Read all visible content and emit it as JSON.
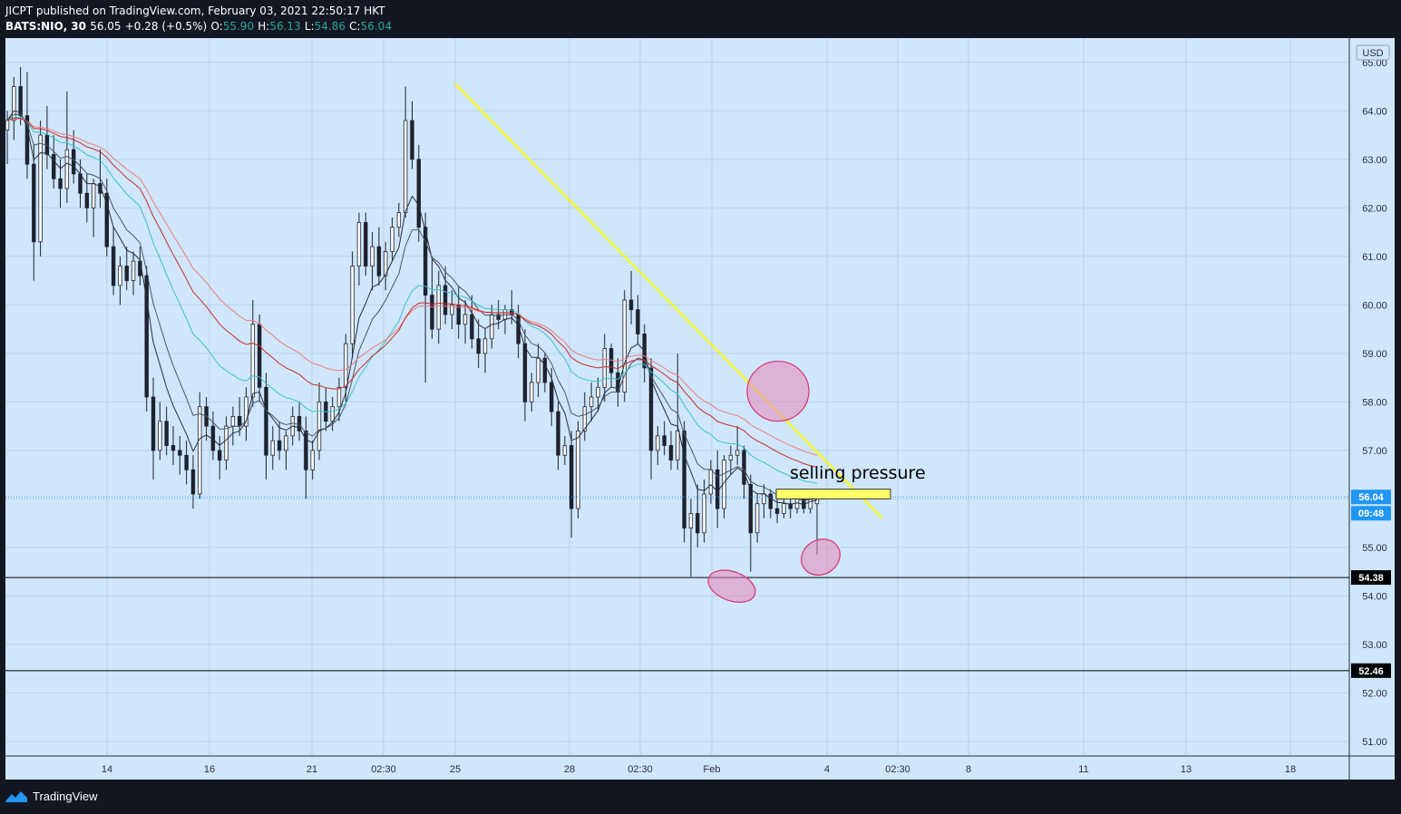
{
  "header": {
    "publisher_line": "JICPT published on TradingView.com, February 03, 2021 22:50:17 HKT",
    "symbol": "BATS:NIO, 30",
    "last": "56.05",
    "change": "+0.28 (+0.5%)",
    "o_label": "O:",
    "o_val": "55.90",
    "h_label": "H:",
    "h_val": "56.13",
    "l_label": "L:",
    "l_val": "54.86",
    "c_label": "C:",
    "c_val": "56.04"
  },
  "footer": {
    "brand": "TradingView"
  },
  "chart_data": {
    "type": "candlestick",
    "currency_label": "USD",
    "ylim": [
      50.7,
      65.5
    ],
    "y_ticks": [
      "65.00",
      "64.00",
      "63.00",
      "62.00",
      "61.00",
      "60.00",
      "59.00",
      "58.00",
      "57.00",
      "56.00",
      "55.00",
      "54.00",
      "53.00",
      "52.00",
      "51.00"
    ],
    "x_ticks": [
      "14",
      "16",
      "21",
      "02:30",
      "25",
      "28",
      "02:30",
      "Feb",
      "4",
      "02:30",
      "8",
      "11",
      "13",
      "18"
    ],
    "last_price": {
      "value": "56.04",
      "countdown": "09:48",
      "color": "#2196f3"
    },
    "horizontal_lines": [
      {
        "value": 54.38,
        "label": "54.38"
      },
      {
        "value": 52.46,
        "label": "52.46"
      }
    ],
    "trendline": {
      "from": [
        25,
        64.55
      ],
      "to": [
        4.55,
        55.6
      ],
      "color": "#ffff00"
    },
    "annotation": {
      "text": "selling pressure"
    },
    "highlight_box": {
      "y_top": 56.2,
      "y_bottom": 56.0,
      "color": "#ffff66"
    },
    "circles": [
      {
        "label": "ma-cross-zone",
        "color": "#e887b8"
      },
      {
        "label": "low-wick-1",
        "color": "#e887b8"
      },
      {
        "label": "low-wick-2",
        "color": "#e887b8"
      }
    ],
    "candles": [
      {
        "o": 63.6,
        "h": 64.0,
        "l": 62.9,
        "c": 63.8
      },
      {
        "o": 63.8,
        "h": 64.7,
        "l": 63.4,
        "c": 64.5
      },
      {
        "o": 64.5,
        "h": 64.9,
        "l": 63.7,
        "c": 63.9
      },
      {
        "o": 63.9,
        "h": 64.8,
        "l": 62.6,
        "c": 62.9
      },
      {
        "o": 62.9,
        "h": 63.3,
        "l": 60.5,
        "c": 61.3
      },
      {
        "o": 61.3,
        "h": 63.8,
        "l": 61.0,
        "c": 63.5
      },
      {
        "o": 63.5,
        "h": 64.1,
        "l": 62.8,
        "c": 63.1
      },
      {
        "o": 63.1,
        "h": 63.5,
        "l": 62.4,
        "c": 62.6
      },
      {
        "o": 62.6,
        "h": 63.0,
        "l": 62.0,
        "c": 62.4
      },
      {
        "o": 62.4,
        "h": 64.4,
        "l": 62.1,
        "c": 63.2
      },
      {
        "o": 63.2,
        "h": 63.6,
        "l": 62.5,
        "c": 62.7
      },
      {
        "o": 62.7,
        "h": 63.0,
        "l": 62.0,
        "c": 62.3
      },
      {
        "o": 62.3,
        "h": 62.7,
        "l": 61.7,
        "c": 62.0
      },
      {
        "o": 62.0,
        "h": 62.6,
        "l": 61.4,
        "c": 62.5
      },
      {
        "o": 62.5,
        "h": 63.2,
        "l": 62.0,
        "c": 62.3
      },
      {
        "o": 62.3,
        "h": 62.6,
        "l": 61.0,
        "c": 61.2
      },
      {
        "o": 61.2,
        "h": 61.6,
        "l": 60.2,
        "c": 60.4
      },
      {
        "o": 60.4,
        "h": 61.0,
        "l": 60.0,
        "c": 60.8
      },
      {
        "o": 60.8,
        "h": 61.2,
        "l": 60.3,
        "c": 60.5
      },
      {
        "o": 60.5,
        "h": 61.1,
        "l": 60.2,
        "c": 60.9
      },
      {
        "o": 60.9,
        "h": 61.2,
        "l": 60.4,
        "c": 60.6
      },
      {
        "o": 60.6,
        "h": 60.8,
        "l": 57.8,
        "c": 58.1
      },
      {
        "o": 58.1,
        "h": 58.5,
        "l": 56.4,
        "c": 57.0
      },
      {
        "o": 57.0,
        "h": 58.0,
        "l": 56.8,
        "c": 57.6
      },
      {
        "o": 57.6,
        "h": 57.9,
        "l": 56.9,
        "c": 57.1
      },
      {
        "o": 57.1,
        "h": 57.5,
        "l": 56.7,
        "c": 57.0
      },
      {
        "o": 57.0,
        "h": 57.3,
        "l": 56.5,
        "c": 56.9
      },
      {
        "o": 56.9,
        "h": 57.2,
        "l": 56.3,
        "c": 56.6
      },
      {
        "o": 56.6,
        "h": 56.9,
        "l": 55.8,
        "c": 56.1
      },
      {
        "o": 56.1,
        "h": 58.2,
        "l": 56.0,
        "c": 57.9
      },
      {
        "o": 57.9,
        "h": 58.1,
        "l": 57.2,
        "c": 57.5
      },
      {
        "o": 57.5,
        "h": 57.8,
        "l": 56.8,
        "c": 57.0
      },
      {
        "o": 57.0,
        "h": 57.3,
        "l": 56.4,
        "c": 56.8
      },
      {
        "o": 56.8,
        "h": 57.7,
        "l": 56.6,
        "c": 57.5
      },
      {
        "o": 57.5,
        "h": 57.9,
        "l": 57.1,
        "c": 57.7
      },
      {
        "o": 57.7,
        "h": 58.1,
        "l": 57.3,
        "c": 57.5
      },
      {
        "o": 57.5,
        "h": 58.3,
        "l": 57.2,
        "c": 58.1
      },
      {
        "o": 58.1,
        "h": 60.1,
        "l": 57.9,
        "c": 59.6
      },
      {
        "o": 59.6,
        "h": 59.8,
        "l": 58.0,
        "c": 58.3
      },
      {
        "o": 58.3,
        "h": 58.6,
        "l": 56.4,
        "c": 56.9
      },
      {
        "o": 56.9,
        "h": 57.5,
        "l": 56.6,
        "c": 57.2
      },
      {
        "o": 57.2,
        "h": 57.6,
        "l": 56.8,
        "c": 57.0
      },
      {
        "o": 57.0,
        "h": 57.4,
        "l": 56.6,
        "c": 57.3
      },
      {
        "o": 57.3,
        "h": 57.9,
        "l": 57.1,
        "c": 57.7
      },
      {
        "o": 57.7,
        "h": 58.0,
        "l": 57.2,
        "c": 57.4
      },
      {
        "o": 57.4,
        "h": 57.7,
        "l": 56.0,
        "c": 56.6
      },
      {
        "o": 56.6,
        "h": 57.2,
        "l": 56.4,
        "c": 57.0
      },
      {
        "o": 57.0,
        "h": 58.4,
        "l": 56.8,
        "c": 58.0
      },
      {
        "o": 58.0,
        "h": 58.3,
        "l": 57.4,
        "c": 57.6
      },
      {
        "o": 57.6,
        "h": 58.1,
        "l": 57.4,
        "c": 57.9
      },
      {
        "o": 57.9,
        "h": 58.5,
        "l": 57.6,
        "c": 58.3
      },
      {
        "o": 58.3,
        "h": 59.4,
        "l": 58.0,
        "c": 59.2
      },
      {
        "o": 59.2,
        "h": 61.1,
        "l": 58.9,
        "c": 60.8
      },
      {
        "o": 60.8,
        "h": 61.9,
        "l": 60.4,
        "c": 61.7
      },
      {
        "o": 61.7,
        "h": 61.9,
        "l": 60.6,
        "c": 60.8
      },
      {
        "o": 60.8,
        "h": 61.5,
        "l": 60.3,
        "c": 61.2
      },
      {
        "o": 61.2,
        "h": 61.6,
        "l": 60.4,
        "c": 60.6
      },
      {
        "o": 60.6,
        "h": 61.3,
        "l": 60.3,
        "c": 61.1
      },
      {
        "o": 61.1,
        "h": 61.8,
        "l": 60.9,
        "c": 61.6
      },
      {
        "o": 61.6,
        "h": 62.1,
        "l": 61.4,
        "c": 61.9
      },
      {
        "o": 61.9,
        "h": 64.5,
        "l": 61.8,
        "c": 63.8
      },
      {
        "o": 63.8,
        "h": 64.2,
        "l": 62.8,
        "c": 63.0
      },
      {
        "o": 63.0,
        "h": 63.3,
        "l": 61.3,
        "c": 61.6
      },
      {
        "o": 61.6,
        "h": 61.9,
        "l": 58.4,
        "c": 60.2
      },
      {
        "o": 60.2,
        "h": 61.0,
        "l": 59.3,
        "c": 59.5
      },
      {
        "o": 59.5,
        "h": 60.7,
        "l": 59.2,
        "c": 60.4
      },
      {
        "o": 60.4,
        "h": 60.8,
        "l": 59.6,
        "c": 59.8
      },
      {
        "o": 59.8,
        "h": 60.3,
        "l": 59.5,
        "c": 60.0
      },
      {
        "o": 60.0,
        "h": 60.4,
        "l": 59.3,
        "c": 59.6
      },
      {
        "o": 59.6,
        "h": 60.1,
        "l": 59.2,
        "c": 59.8
      },
      {
        "o": 59.8,
        "h": 60.2,
        "l": 59.1,
        "c": 59.3
      },
      {
        "o": 59.3,
        "h": 59.7,
        "l": 58.7,
        "c": 59.0
      },
      {
        "o": 59.0,
        "h": 59.5,
        "l": 58.6,
        "c": 59.3
      },
      {
        "o": 59.3,
        "h": 60.0,
        "l": 59.1,
        "c": 59.8
      },
      {
        "o": 59.8,
        "h": 60.1,
        "l": 59.5,
        "c": 59.7
      },
      {
        "o": 59.7,
        "h": 60.0,
        "l": 59.4,
        "c": 59.9
      },
      {
        "o": 59.9,
        "h": 60.3,
        "l": 59.6,
        "c": 59.8
      },
      {
        "o": 59.8,
        "h": 60.0,
        "l": 58.9,
        "c": 59.2
      },
      {
        "o": 59.2,
        "h": 59.5,
        "l": 57.6,
        "c": 58.0
      },
      {
        "o": 58.0,
        "h": 58.6,
        "l": 57.8,
        "c": 58.4
      },
      {
        "o": 58.4,
        "h": 59.2,
        "l": 58.1,
        "c": 58.9
      },
      {
        "o": 58.9,
        "h": 59.0,
        "l": 58.2,
        "c": 58.4
      },
      {
        "o": 58.4,
        "h": 58.7,
        "l": 57.5,
        "c": 57.8
      },
      {
        "o": 57.8,
        "h": 58.0,
        "l": 56.6,
        "c": 56.9
      },
      {
        "o": 56.9,
        "h": 57.3,
        "l": 56.7,
        "c": 57.1
      },
      {
        "o": 57.1,
        "h": 57.4,
        "l": 55.2,
        "c": 55.8
      },
      {
        "o": 55.8,
        "h": 57.6,
        "l": 55.6,
        "c": 57.4
      },
      {
        "o": 57.4,
        "h": 58.2,
        "l": 57.2,
        "c": 57.9
      },
      {
        "o": 57.9,
        "h": 58.4,
        "l": 57.6,
        "c": 58.1
      },
      {
        "o": 58.1,
        "h": 58.5,
        "l": 57.8,
        "c": 58.3
      },
      {
        "o": 58.3,
        "h": 59.4,
        "l": 58.0,
        "c": 59.1
      },
      {
        "o": 59.1,
        "h": 59.2,
        "l": 58.3,
        "c": 58.6
      },
      {
        "o": 58.6,
        "h": 58.9,
        "l": 57.9,
        "c": 58.2
      },
      {
        "o": 58.2,
        "h": 60.3,
        "l": 58.0,
        "c": 60.1
      },
      {
        "o": 60.1,
        "h": 60.7,
        "l": 59.6,
        "c": 59.9
      },
      {
        "o": 59.9,
        "h": 60.2,
        "l": 59.2,
        "c": 59.4
      },
      {
        "o": 59.4,
        "h": 59.6,
        "l": 58.4,
        "c": 58.7
      },
      {
        "o": 58.7,
        "h": 58.9,
        "l": 56.4,
        "c": 57.0
      },
      {
        "o": 57.0,
        "h": 57.5,
        "l": 56.7,
        "c": 57.3
      },
      {
        "o": 57.3,
        "h": 57.6,
        "l": 56.9,
        "c": 57.1
      },
      {
        "o": 57.1,
        "h": 57.4,
        "l": 56.6,
        "c": 56.8
      },
      {
        "o": 56.8,
        "h": 59.0,
        "l": 56.6,
        "c": 57.4
      },
      {
        "o": 57.4,
        "h": 57.6,
        "l": 55.1,
        "c": 55.4
      },
      {
        "o": 55.4,
        "h": 56.0,
        "l": 54.4,
        "c": 55.7
      },
      {
        "o": 55.7,
        "h": 56.3,
        "l": 55.0,
        "c": 55.3
      },
      {
        "o": 55.3,
        "h": 56.4,
        "l": 55.1,
        "c": 56.1
      },
      {
        "o": 56.1,
        "h": 56.8,
        "l": 55.9,
        "c": 56.6
      },
      {
        "o": 56.6,
        "h": 57.0,
        "l": 55.4,
        "c": 55.8
      },
      {
        "o": 55.8,
        "h": 56.9,
        "l": 55.6,
        "c": 56.8
      },
      {
        "o": 56.8,
        "h": 57.1,
        "l": 56.5,
        "c": 56.9
      },
      {
        "o": 56.9,
        "h": 57.5,
        "l": 56.7,
        "c": 57.0
      },
      {
        "o": 57.0,
        "h": 57.1,
        "l": 56.0,
        "c": 56.3
      },
      {
        "o": 56.3,
        "h": 56.5,
        "l": 54.5,
        "c": 55.3
      },
      {
        "o": 55.3,
        "h": 56.1,
        "l": 55.1,
        "c": 55.9
      },
      {
        "o": 55.9,
        "h": 56.3,
        "l": 55.6,
        "c": 56.1
      },
      {
        "o": 56.1,
        "h": 56.2,
        "l": 55.6,
        "c": 55.8
      },
      {
        "o": 55.8,
        "h": 56.0,
        "l": 55.5,
        "c": 55.7
      },
      {
        "o": 55.7,
        "h": 56.0,
        "l": 55.6,
        "c": 55.9
      },
      {
        "o": 55.9,
        "h": 56.1,
        "l": 55.6,
        "c": 55.8
      },
      {
        "o": 55.8,
        "h": 56.1,
        "l": 55.7,
        "c": 56.0
      },
      {
        "o": 56.0,
        "h": 56.2,
        "l": 55.7,
        "c": 55.8
      },
      {
        "o": 55.8,
        "h": 56.1,
        "l": 55.7,
        "c": 56.1
      },
      {
        "o": 55.9,
        "h": 56.13,
        "l": 54.86,
        "c": 56.04
      }
    ]
  }
}
